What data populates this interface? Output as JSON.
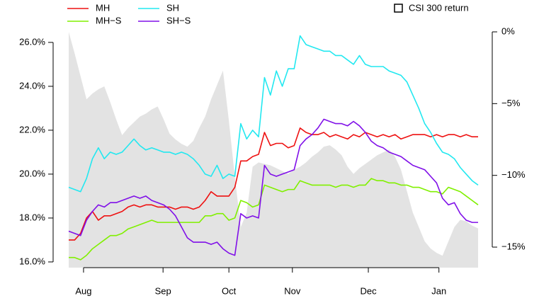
{
  "chart_data": {
    "type": "line",
    "x": [
      0,
      1,
      2,
      3,
      4,
      5,
      6,
      7,
      8,
      9,
      10,
      11,
      12,
      13,
      14,
      15,
      16,
      17,
      18,
      19,
      20,
      21,
      22,
      23,
      24,
      25,
      26,
      27,
      28,
      29,
      30,
      31,
      32,
      33,
      34,
      35,
      36,
      37,
      38,
      39,
      40,
      41,
      42,
      43,
      44,
      45,
      46,
      47,
      48,
      49,
      50,
      51,
      52,
      53,
      54,
      55,
      56,
      57,
      58,
      59,
      60,
      61,
      62,
      63,
      64,
      65,
      66,
      67,
      68,
      69
    ],
    "xlim": [
      0,
      69
    ],
    "xticks": [
      {
        "value": 2.5,
        "label": "Aug"
      },
      {
        "value": 15.9,
        "label": "Sep"
      },
      {
        "value": 27,
        "label": "Oct"
      },
      {
        "value": 37.7,
        "label": "Nov"
      },
      {
        "value": 50.5,
        "label": "Dec"
      },
      {
        "value": 62.4,
        "label": "Jan"
      }
    ],
    "ylim": [
      15.74,
      26.48
    ],
    "yticks": [
      {
        "value": 16,
        "label": "16.0%"
      },
      {
        "value": 18,
        "label": "18.0%"
      },
      {
        "value": 20,
        "label": "20.0%"
      },
      {
        "value": 22,
        "label": "22.0%"
      },
      {
        "value": 24,
        "label": "24.0%"
      },
      {
        "value": 26,
        "label": "26.0%"
      }
    ],
    "y2lim": [
      -16.43,
      0
    ],
    "y2ticks": [
      {
        "value": 0,
        "label": "0%"
      },
      {
        "value": -5,
        "label": "−5%"
      },
      {
        "value": -10,
        "label": "−10%"
      },
      {
        "value": -15,
        "label": "−15%"
      }
    ],
    "series": [
      {
        "name": "MH",
        "color": "#ee1111",
        "values": [
          17.0,
          17.0,
          17.3,
          18.0,
          18.3,
          17.9,
          18.1,
          18.1,
          18.2,
          18.3,
          18.5,
          18.6,
          18.5,
          18.6,
          18.6,
          18.5,
          18.5,
          18.5,
          18.4,
          18.5,
          18.5,
          18.4,
          18.5,
          18.8,
          19.2,
          19.0,
          19.0,
          19.0,
          19.4,
          20.6,
          20.6,
          20.8,
          20.9,
          21.9,
          21.3,
          21.4,
          21.4,
          21.2,
          21.3,
          22.1,
          21.9,
          21.8,
          21.8,
          21.9,
          21.7,
          21.8,
          21.7,
          21.6,
          21.8,
          21.7,
          21.9,
          21.8,
          21.7,
          21.8,
          21.7,
          21.8,
          21.6,
          21.7,
          21.8,
          21.8,
          21.8,
          21.7,
          21.8,
          21.7,
          21.8,
          21.8,
          21.7,
          21.8,
          21.7,
          21.7
        ]
      },
      {
        "name": "MH−S",
        "color": "#80f000",
        "values": [
          16.2,
          16.2,
          16.1,
          16.3,
          16.6,
          16.8,
          17.0,
          17.2,
          17.2,
          17.3,
          17.5,
          17.6,
          17.7,
          17.8,
          17.9,
          17.8,
          17.8,
          17.8,
          17.8,
          17.8,
          17.8,
          17.8,
          17.8,
          18.1,
          18.1,
          18.2,
          18.2,
          17.9,
          18.0,
          18.8,
          18.7,
          18.5,
          18.6,
          19.5,
          19.4,
          19.3,
          19.2,
          19.3,
          19.3,
          19.7,
          19.6,
          19.5,
          19.5,
          19.5,
          19.5,
          19.4,
          19.5,
          19.5,
          19.4,
          19.5,
          19.5,
          19.8,
          19.7,
          19.7,
          19.6,
          19.6,
          19.5,
          19.5,
          19.4,
          19.4,
          19.3,
          19.2,
          19.2,
          19.1,
          19.4,
          19.3,
          19.2,
          19.0,
          18.8,
          18.6
        ]
      },
      {
        "name": "SH",
        "color": "#22e8f0",
        "values": [
          19.4,
          19.3,
          19.2,
          19.8,
          20.7,
          21.2,
          20.7,
          21.0,
          20.9,
          21.0,
          21.3,
          21.6,
          21.3,
          21.1,
          21.2,
          21.1,
          21.0,
          21.0,
          20.9,
          21.0,
          20.9,
          20.7,
          20.4,
          20.0,
          19.9,
          20.4,
          19.8,
          20.0,
          19.9,
          22.3,
          21.6,
          22.0,
          21.7,
          24.4,
          23.6,
          24.7,
          24.0,
          24.8,
          24.8,
          26.3,
          25.9,
          25.8,
          25.7,
          25.6,
          25.6,
          25.4,
          25.4,
          25.2,
          25.0,
          25.4,
          25.0,
          24.9,
          24.9,
          24.9,
          24.7,
          24.6,
          24.5,
          24.2,
          23.6,
          23.0,
          22.3,
          21.9,
          21.4,
          21.0,
          20.9,
          20.7,
          20.3,
          20.0,
          19.7,
          19.5
        ]
      },
      {
        "name": "SH−S",
        "color": "#8010e8",
        "values": [
          17.4,
          17.3,
          17.2,
          17.9,
          18.3,
          18.6,
          18.5,
          18.7,
          18.7,
          18.8,
          18.9,
          19.0,
          18.9,
          19.0,
          18.8,
          18.7,
          18.6,
          18.4,
          18.1,
          17.6,
          17.1,
          16.9,
          16.9,
          16.9,
          16.8,
          16.9,
          16.6,
          16.4,
          16.3,
          18.2,
          18.0,
          18.1,
          18.0,
          20.4,
          20.0,
          19.9,
          20.0,
          20.1,
          20.2,
          21.3,
          21.6,
          21.8,
          22.1,
          22.5,
          22.4,
          22.3,
          22.3,
          22.2,
          22.4,
          22.2,
          21.9,
          21.5,
          21.3,
          21.2,
          21.0,
          20.9,
          20.8,
          20.6,
          20.4,
          20.3,
          20.2,
          19.9,
          19.6,
          18.9,
          18.6,
          18.7,
          18.2,
          17.9,
          17.8,
          17.8
        ]
      },
      {
        "name": "CSI 300 return",
        "color": "#e3e3e3",
        "type": "area",
        "axis": "y2",
        "values": [
          0,
          -1.5,
          -3.1,
          -4.7,
          -4.3,
          -4.0,
          -3.8,
          -4.9,
          -6.1,
          -7.2,
          -6.7,
          -6.3,
          -5.9,
          -5.7,
          -5.4,
          -5.2,
          -6.1,
          -7.1,
          -7.5,
          -7.8,
          -8.0,
          -7.6,
          -6.7,
          -5.9,
          -4.7,
          -3.7,
          -2.7,
          -6.2,
          -10.1,
          -13.6,
          -12.6,
          -9.4,
          -9.1,
          -9.2,
          -9.3,
          -9.5,
          -9.7,
          -9.9,
          -9.6,
          -9.4,
          -9.1,
          -8.7,
          -8.4,
          -8.0,
          -7.9,
          -8.2,
          -8.6,
          -9.4,
          -9.9,
          -9.5,
          -9.2,
          -8.9,
          -8.6,
          -8.4,
          -8.2,
          -8.7,
          -9.6,
          -11.1,
          -12.6,
          -13.6,
          -14.6,
          -15.1,
          -15.4,
          -15.6,
          -14.6,
          -13.6,
          -13.1,
          -13.2,
          -13.5,
          -13.7
        ]
      }
    ]
  }
}
